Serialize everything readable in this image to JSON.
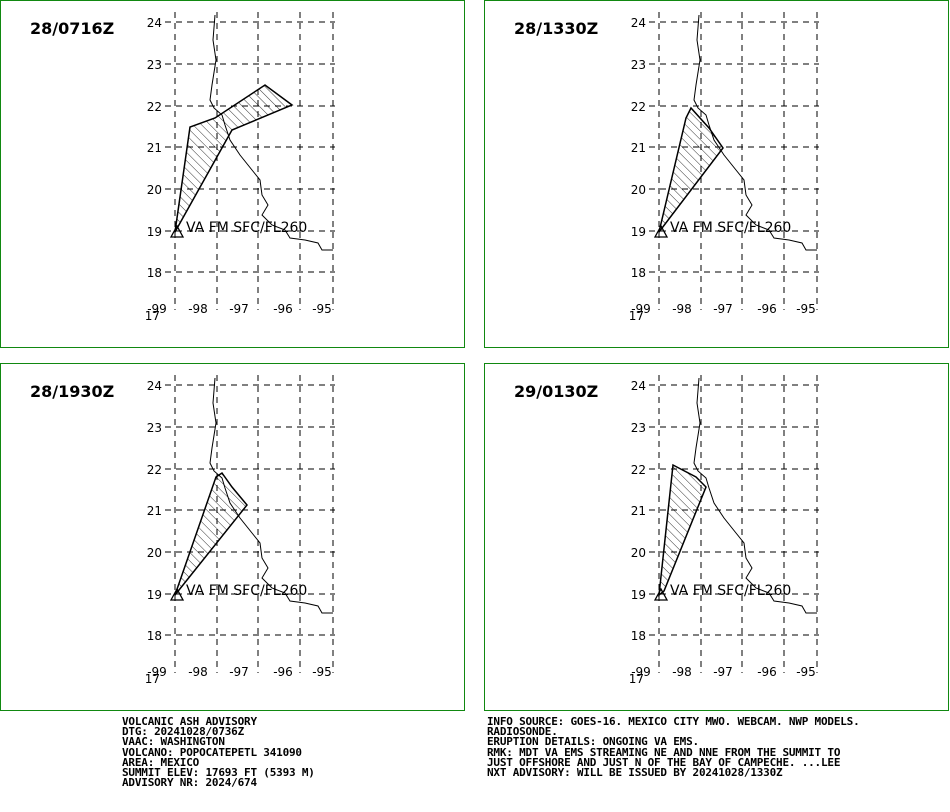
{
  "panels": [
    {
      "label": "28/0716Z",
      "annotation": "VA FM SFC/FL260"
    },
    {
      "label": "28/1330Z",
      "annotation": "VA FM SFC/FL260"
    },
    {
      "label": "28/1930Z",
      "annotation": "VA FM SFC/FL260"
    },
    {
      "label": "29/0130Z",
      "annotation": "VA FM SFC/FL260"
    }
  ],
  "lat_labels": [
    "24",
    "23",
    "22",
    "21",
    "20",
    "19",
    "18",
    "17"
  ],
  "lon_labels": [
    "-99",
    "-98",
    "-97",
    "-96",
    "-95"
  ],
  "advisory": {
    "lines": [
      "VOLCANIC ASH ADVISORY",
      "DTG: 20241028/0736Z",
      "VAAC: WASHINGTON",
      "VOLCANO: POPOCATEPETL 341090",
      "AREA: MEXICO",
      "SUMMIT ELEV: 17693 FT (5393 M)",
      "ADVISORY NR: 2024/674"
    ]
  },
  "info": {
    "lines": [
      "INFO SOURCE: GOES-16. MEXICO CITY MWO. WEBCAM. NWP MODELS.",
      "RADIOSONDE.",
      "ERUPTION DETAILS: ONGOING VA EMS.",
      "RMK: MDT VA EMS STREAMING NE AND NNE FROM THE SUMMIT TO",
      "JUST OFFSHORE AND JUST N OF THE BAY OF CAMPECHE. ...LEE",
      "NXT ADVISORY: WILL BE ISSUED BY 20241028/1330Z"
    ]
  }
}
